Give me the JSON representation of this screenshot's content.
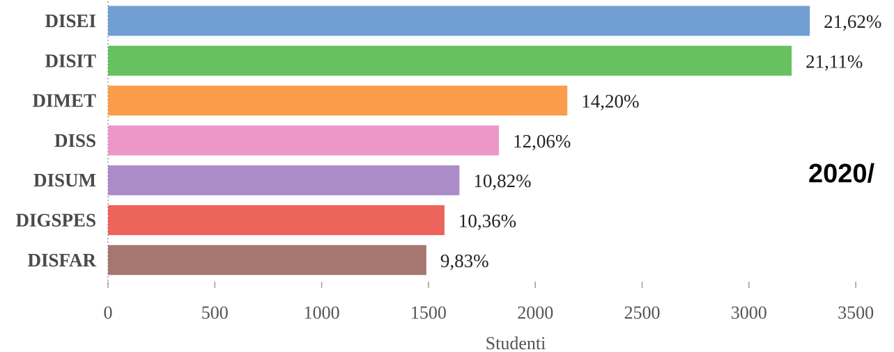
{
  "chart_data": {
    "type": "bar",
    "orientation": "horizontal",
    "categories": [
      "DISEI",
      "DISIT",
      "DIMET",
      "DISS",
      "DISUM",
      "DIGSPES",
      "DISFAR"
    ],
    "values": [
      3285,
      3200,
      2150,
      1830,
      1645,
      1575,
      1490
    ],
    "value_labels": [
      "21,62%",
      "21,11%",
      "14,20%",
      "12,06%",
      "10,82%",
      "10,36%",
      "9,83%"
    ],
    "colors": [
      "#729fd3",
      "#67c15e",
      "#fb9c4b",
      "#ed97c8",
      "#ac8bc9",
      "#ec645b",
      "#a57770"
    ],
    "xlabel": "Studenti",
    "ylabel": "",
    "xlim": [
      0,
      3500
    ],
    "x_ticks": [
      0,
      500,
      1000,
      1500,
      2000,
      2500,
      3000,
      3500
    ],
    "grid": false,
    "legend": "none"
  },
  "overlay_text": "2020/"
}
